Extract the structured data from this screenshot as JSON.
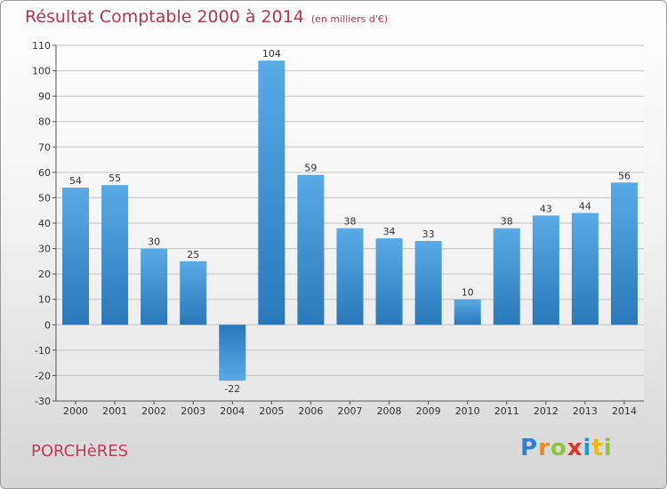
{
  "chart_data": {
    "type": "bar",
    "title": "Résultat Comptable 2000 à 2014",
    "subtitle": "(en milliers d'€)",
    "categories": [
      "2000",
      "2001",
      "2002",
      "2003",
      "2004",
      "2005",
      "2006",
      "2007",
      "2008",
      "2009",
      "2010",
      "2011",
      "2012",
      "2013",
      "2014"
    ],
    "values": [
      54,
      55,
      30,
      25,
      -22,
      104,
      59,
      38,
      34,
      33,
      10,
      38,
      43,
      44,
      56
    ],
    "ylim": [
      -30,
      110
    ],
    "yticks": [
      -30,
      -20,
      -10,
      0,
      10,
      20,
      30,
      40,
      50,
      60,
      70,
      80,
      90,
      100,
      110
    ],
    "grid": true,
    "xlabel": "",
    "ylabel": "",
    "colors": {
      "bar_light": "#5aaae6",
      "bar_dark": "#2a78b8",
      "title": "#b5334d"
    }
  },
  "footer": {
    "town": "PORCHèRES",
    "logo_letters": [
      "P",
      "r",
      "o",
      "x",
      "i",
      "t",
      "i"
    ],
    "logo_colors": [
      "#2f7fd3",
      "#f08a1c",
      "#8cc63f",
      "#e0342b",
      "#1f9bd7",
      "#f3b617",
      "#8cc63f"
    ]
  }
}
